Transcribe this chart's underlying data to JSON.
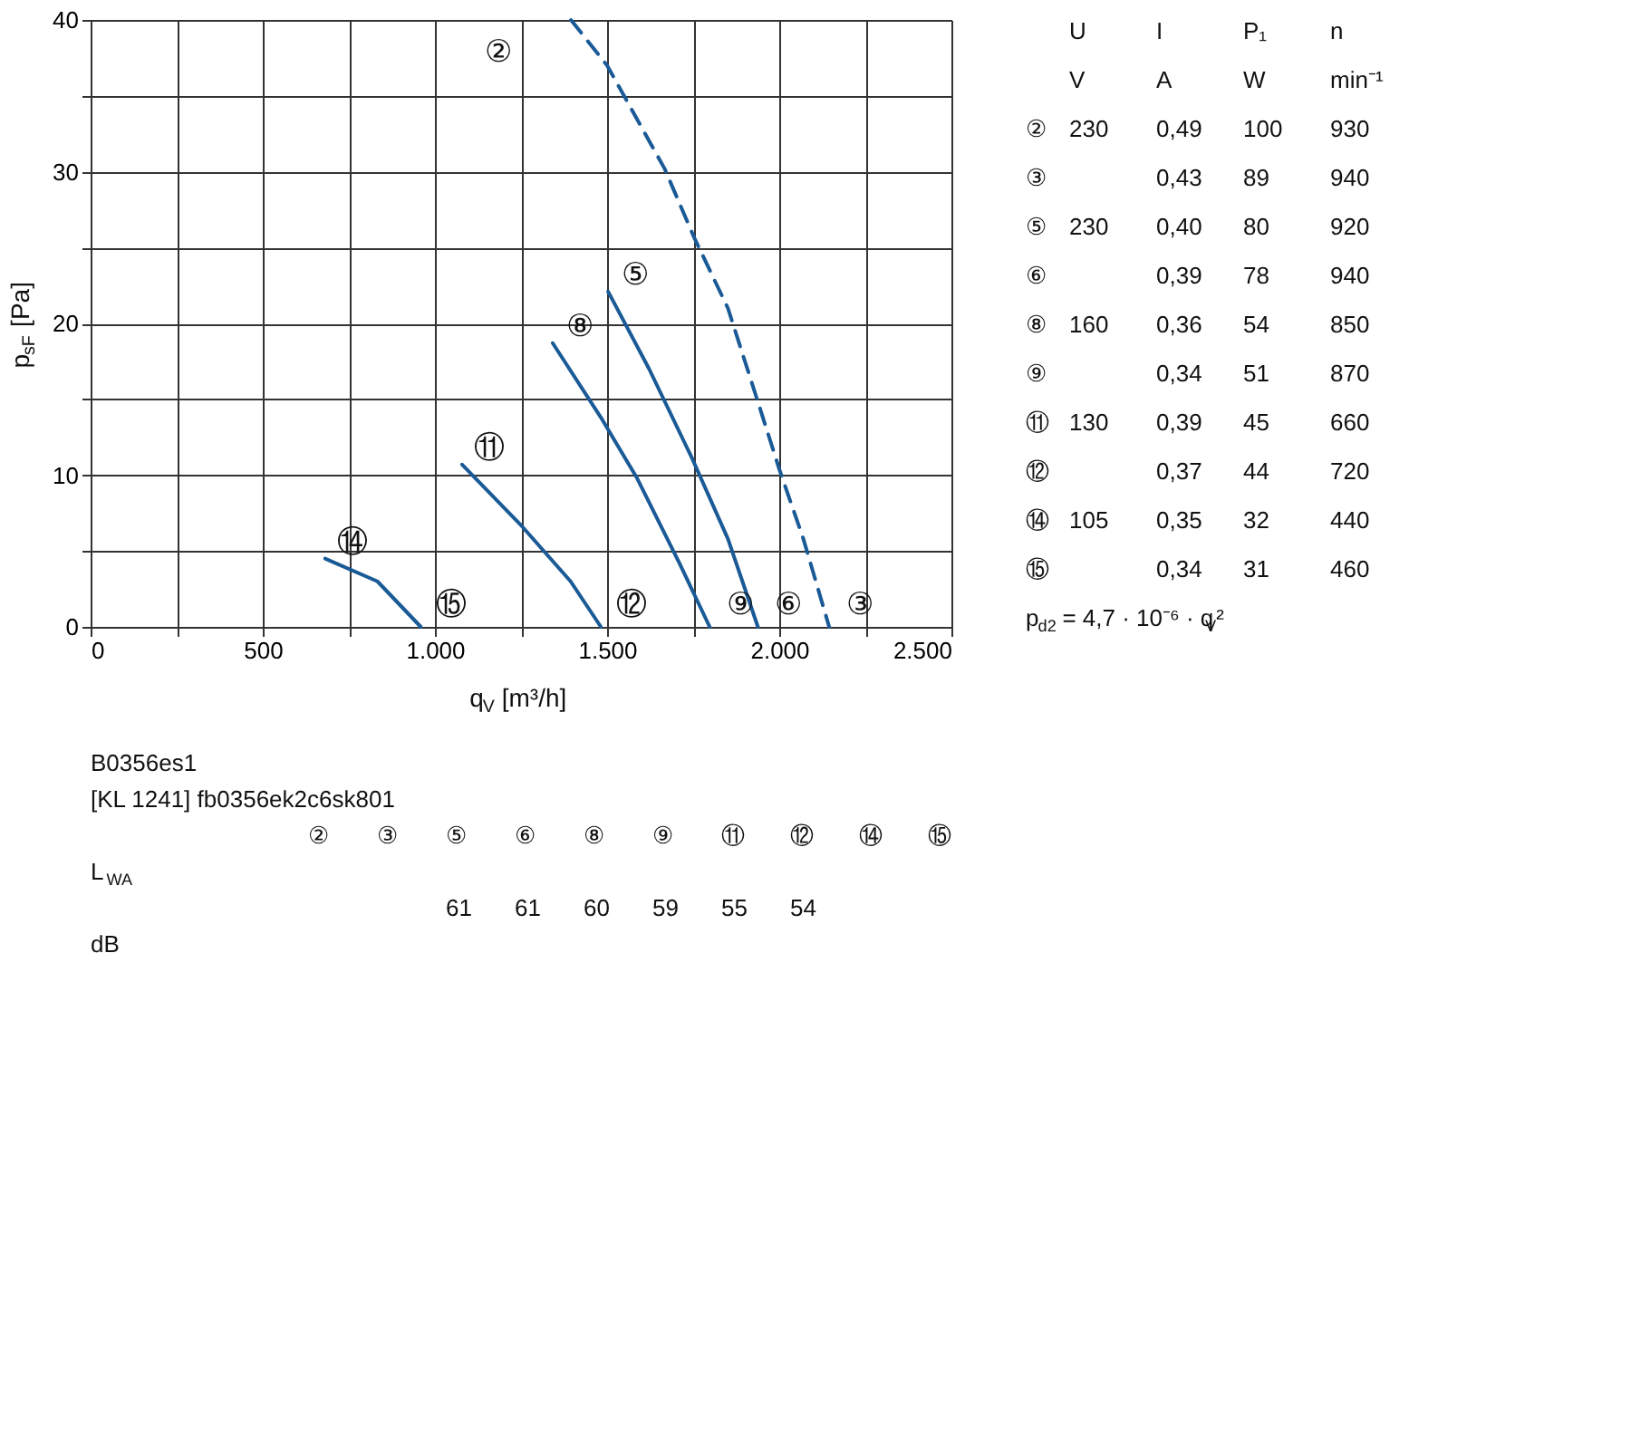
{
  "chart_data": {
    "type": "line",
    "xlabel": "q$_{V}$ [m³/h]",
    "ylabel": "p$_{sF}$ [Pa]",
    "xlim": [
      0,
      2500
    ],
    "ylim": [
      0,
      40
    ],
    "xticks": [
      0,
      {
        "value": 250,
        "label": null
      },
      500,
      {
        "value": 750,
        "label": null
      },
      {
        "value": 1000,
        "label": "1.000"
      },
      {
        "value": 1250,
        "label": null
      },
      {
        "value": 1500,
        "label": "1.500"
      },
      {
        "value": 1750,
        "label": null
      },
      {
        "value": 2000,
        "label": "2.000"
      },
      {
        "value": 2250,
        "label": null
      },
      {
        "value": 2500,
        "label": "2.500"
      }
    ],
    "yticks": [
      0,
      {
        "value": 5,
        "label": null
      },
      10,
      {
        "value": 15,
        "label": null
      },
      20,
      {
        "value": 25,
        "label": null
      },
      30,
      {
        "value": 35,
        "label": null
      },
      40
    ],
    "grid": true,
    "marker": "none",
    "series": [
      {
        "color": "#1a5a96",
        "line_style": "dashed",
        "x": [
          1395,
          1500,
          1667,
          1754,
          1851,
          1930,
          2000,
          2070,
          2145
        ],
        "values": [
          40,
          37,
          30.2,
          25.6,
          21,
          15.4,
          10.4,
          5.8,
          0
        ]
      },
      {
        "color": "#1a5a96",
        "line_style": "solid",
        "x": [
          1503,
          1622,
          1745,
          1851,
          1938
        ],
        "values": [
          22.1,
          17,
          11.2,
          5.8,
          0
        ]
      },
      {
        "color": "#1a5a96",
        "line_style": "solid",
        "x": [
          1342,
          1482,
          1587,
          1710,
          1798
        ],
        "values": [
          18.7,
          13.8,
          9.8,
          4.2,
          0
        ]
      },
      {
        "color": "#1a5a96",
        "line_style": "solid",
        "x": [
          1079,
          1254,
          1394,
          1482
        ],
        "values": [
          10.7,
          6.6,
          3,
          0
        ]
      },
      {
        "color": "#1a5a96",
        "line_style": "solid",
        "x": [
          681,
          833,
          959
        ],
        "values": [
          4.5,
          3,
          0
        ]
      }
    ],
    "annotations": [
      {
        "text": "②",
        "x": 1395,
        "y": 40
      },
      {
        "text": "③",
        "x": 2145,
        "y": 0
      },
      {
        "text": "⑤",
        "x": 1503,
        "y": 22.1
      },
      {
        "text": "⑥",
        "x": 1938,
        "y": 0
      },
      {
        "text": "⑧",
        "x": 1342,
        "y": 18.7
      },
      {
        "text": "⑨",
        "x": 1798,
        "y": 0
      },
      {
        "text": "⑪",
        "x": 1079,
        "y": 10.7
      },
      {
        "text": "⑫",
        "x": 1482,
        "y": 0
      },
      {
        "text": "⑭",
        "x": 681,
        "y": 4.5
      },
      {
        "text": "⑮",
        "x": 959,
        "y": 0
      },
      "  U  I  P₁  n",
      "  V  A  W  min⁻¹",
      "②  230  0,49  100  930",
      "③    0,43  89  940",
      "⑤  230  0,40  80  920",
      "⑥    0,39  78  940",
      "⑧  160  0,36  54  850",
      "⑨    0,34  51  870",
      "⑪  130  0,39  45  660",
      "⑫    0,37  44  720",
      "⑭  105  0,35  32  440",
      "⑮    0,34  31  460",
      "p$_{d2}$ = 4,7 · 10⁻⁶ · q$_{V}$²",
      "B0356es1",
      "[KL 1241] fb0356ek2c6sk801",
      "  ②  ③  ⑤  ⑥  ⑧  ⑨  ⑪  ⑫  ⑭  ⑮",
      "L$_{WA}$",
      "      61  61  60  59  55  54",
      "dB"
    ]
  }
}
